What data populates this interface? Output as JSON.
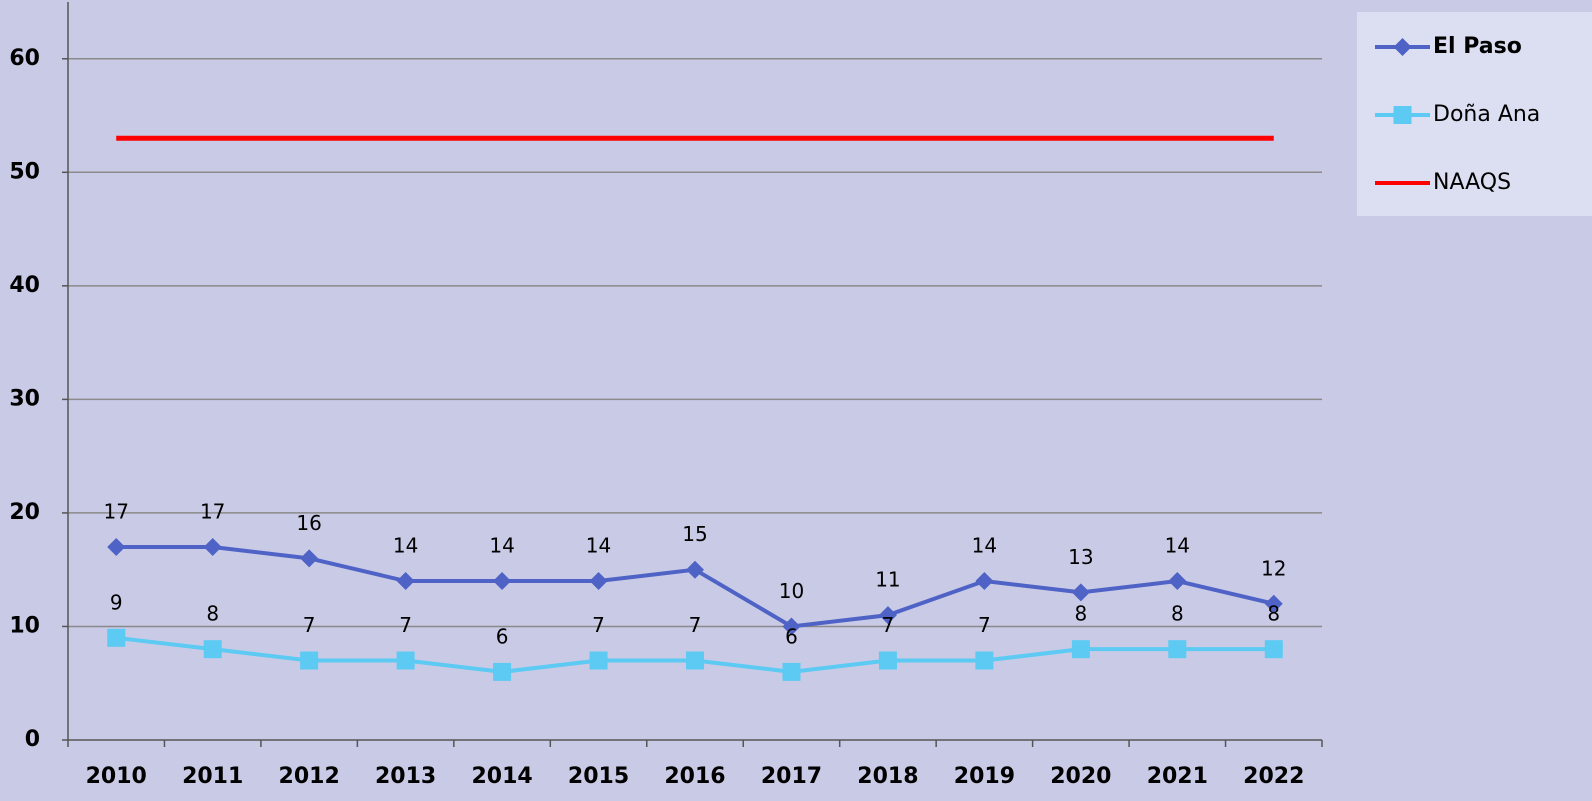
{
  "chart_data": {
    "type": "line",
    "categories": [
      "2010",
      "2011",
      "2012",
      "2013",
      "2014",
      "2015",
      "2016",
      "2017",
      "2018",
      "2019",
      "2020",
      "2021",
      "2022"
    ],
    "series": [
      {
        "name": "El Paso",
        "color": "#4f63c6",
        "marker": "diamond",
        "data_labels": true,
        "values": [
          17,
          17,
          16,
          14,
          14,
          14,
          15,
          10,
          11,
          14,
          13,
          14,
          12
        ]
      },
      {
        "name": "Doña Ana",
        "color": "#5ccaf2",
        "marker": "square",
        "data_labels": true,
        "values": [
          9,
          8,
          7,
          7,
          6,
          7,
          7,
          6,
          7,
          7,
          8,
          8,
          8
        ]
      },
      {
        "name": "NAAQS",
        "color": "#ff0000",
        "marker": "none",
        "data_labels": false,
        "values": [
          53,
          53,
          53,
          53,
          53,
          53,
          53,
          53,
          53,
          53,
          53,
          53,
          53
        ]
      }
    ],
    "ylim": [
      0,
      65
    ],
    "yticks": [
      0,
      10,
      20,
      30,
      40,
      50,
      60
    ],
    "grid": true,
    "legend": "top-right"
  }
}
